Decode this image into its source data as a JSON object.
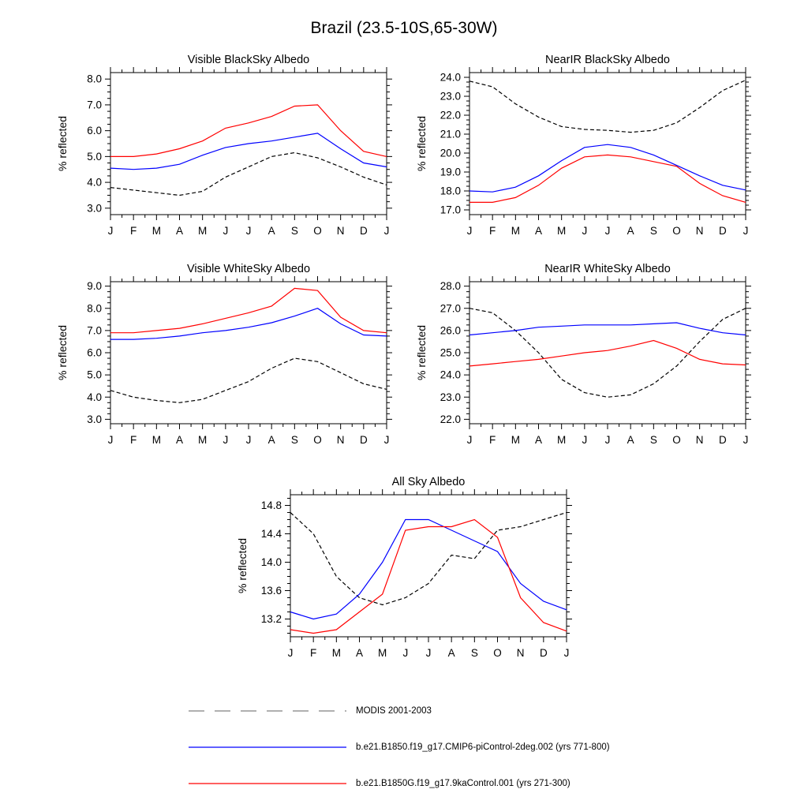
{
  "figure": {
    "title": "Brazil (23.5-10S,65-30W)"
  },
  "chart_data": [
    {
      "type": "line",
      "title": "Visible BlackSky Albedo",
      "ylabel": "% reflected",
      "categories": [
        "J",
        "F",
        "M",
        "A",
        "M",
        "J",
        "J",
        "A",
        "S",
        "O",
        "N",
        "D",
        "J"
      ],
      "ylim": [
        2.75,
        8.25
      ],
      "yticks": [
        3.0,
        4.0,
        5.0,
        6.0,
        7.0,
        8.0
      ],
      "series": [
        {
          "name": "MODIS 2001-2003",
          "color": "#000000",
          "dashed": true,
          "values": [
            3.8,
            3.7,
            3.6,
            3.5,
            3.65,
            4.2,
            4.6,
            5.0,
            5.15,
            4.95,
            4.6,
            4.2,
            3.9
          ]
        },
        {
          "name": "b.e21.B1850.f19_g17.CMIP6-piControl-2deg.002 (yrs 771-800)",
          "color": "#0000ff",
          "dashed": false,
          "values": [
            4.55,
            4.5,
            4.55,
            4.7,
            5.05,
            5.35,
            5.5,
            5.6,
            5.75,
            5.9,
            5.3,
            4.75,
            4.6
          ]
        },
        {
          "name": "b.e21.B1850G.f19_g17.9kaControl.001 (yrs 271-300)",
          "color": "#ff0000",
          "dashed": false,
          "values": [
            5.0,
            5.0,
            5.1,
            5.3,
            5.6,
            6.1,
            6.3,
            6.55,
            6.95,
            7.0,
            6.0,
            5.2,
            5.0
          ]
        }
      ]
    },
    {
      "type": "line",
      "title": "NearIR BlackSky Albedo",
      "ylabel": "% reflected",
      "categories": [
        "J",
        "F",
        "M",
        "A",
        "M",
        "J",
        "J",
        "A",
        "S",
        "O",
        "N",
        "D",
        "J"
      ],
      "ylim": [
        16.75,
        24.25
      ],
      "yticks": [
        17.0,
        18.0,
        19.0,
        20.0,
        21.0,
        22.0,
        23.0,
        24.0
      ],
      "series": [
        {
          "name": "MODIS 2001-2003",
          "color": "#000000",
          "dashed": true,
          "values": [
            23.8,
            23.5,
            22.6,
            21.9,
            21.4,
            21.25,
            21.2,
            21.1,
            21.2,
            21.6,
            22.4,
            23.3,
            23.85
          ]
        },
        {
          "name": "b.e21.B1850.f19_g17.CMIP6-piControl-2deg.002 (yrs 771-800)",
          "color": "#0000ff",
          "dashed": false,
          "values": [
            18.0,
            17.95,
            18.2,
            18.8,
            19.6,
            20.3,
            20.45,
            20.3,
            19.9,
            19.35,
            18.8,
            18.3,
            18.05
          ]
        },
        {
          "name": "b.e21.B1850G.f19_g17.9kaControl.001 (yrs 271-300)",
          "color": "#ff0000",
          "dashed": false,
          "values": [
            17.4,
            17.4,
            17.65,
            18.3,
            19.2,
            19.8,
            19.9,
            19.8,
            19.55,
            19.3,
            18.4,
            17.75,
            17.4
          ]
        }
      ]
    },
    {
      "type": "line",
      "title": "Visible WhiteSky Albedo",
      "ylabel": "% reflected",
      "categories": [
        "J",
        "F",
        "M",
        "A",
        "M",
        "J",
        "J",
        "A",
        "S",
        "O",
        "N",
        "D",
        "J"
      ],
      "ylim": [
        2.8,
        9.2
      ],
      "yticks": [
        3.0,
        4.0,
        5.0,
        6.0,
        7.0,
        8.0,
        9.0
      ],
      "series": [
        {
          "name": "MODIS 2001-2003",
          "color": "#000000",
          "dashed": true,
          "values": [
            4.3,
            4.0,
            3.85,
            3.75,
            3.9,
            4.3,
            4.7,
            5.3,
            5.75,
            5.6,
            5.1,
            4.6,
            4.35
          ]
        },
        {
          "name": "b.e21.B1850.f19_g17.CMIP6-piControl-2deg.002 (yrs 771-800)",
          "color": "#0000ff",
          "dashed": false,
          "values": [
            6.6,
            6.6,
            6.65,
            6.75,
            6.9,
            7.0,
            7.15,
            7.35,
            7.65,
            8.0,
            7.3,
            6.8,
            6.75
          ]
        },
        {
          "name": "b.e21.B1850G.f19_g17.9kaControl.001 (yrs 271-300)",
          "color": "#ff0000",
          "dashed": false,
          "values": [
            6.9,
            6.9,
            7.0,
            7.1,
            7.3,
            7.55,
            7.8,
            8.1,
            8.9,
            8.8,
            7.6,
            7.0,
            6.9
          ]
        }
      ]
    },
    {
      "type": "line",
      "title": "NearIR WhiteSky Albedo",
      "ylabel": "% reflected",
      "categories": [
        "J",
        "F",
        "M",
        "A",
        "M",
        "J",
        "J",
        "A",
        "S",
        "O",
        "N",
        "D",
        "J"
      ],
      "ylim": [
        21.8,
        28.2
      ],
      "yticks": [
        22.0,
        23.0,
        24.0,
        25.0,
        26.0,
        27.0,
        28.0
      ],
      "series": [
        {
          "name": "MODIS 2001-2003",
          "color": "#000000",
          "dashed": true,
          "values": [
            27.0,
            26.8,
            26.0,
            25.0,
            23.8,
            23.2,
            23.0,
            23.1,
            23.6,
            24.4,
            25.5,
            26.5,
            27.0
          ]
        },
        {
          "name": "b.e21.B1850.f19_g17.CMIP6-piControl-2deg.002 (yrs 771-800)",
          "color": "#0000ff",
          "dashed": false,
          "values": [
            25.8,
            25.9,
            26.0,
            26.15,
            26.2,
            26.25,
            26.25,
            26.25,
            26.3,
            26.35,
            26.1,
            25.9,
            25.8
          ]
        },
        {
          "name": "b.e21.B1850G.f19_g17.9kaControl.001 (yrs 271-300)",
          "color": "#ff0000",
          "dashed": false,
          "values": [
            24.4,
            24.5,
            24.6,
            24.7,
            24.85,
            25.0,
            25.1,
            25.3,
            25.55,
            25.2,
            24.7,
            24.5,
            24.45
          ]
        }
      ]
    },
    {
      "type": "line",
      "title": "All Sky Albedo",
      "ylabel": "% reflected",
      "categories": [
        "J",
        "F",
        "M",
        "A",
        "M",
        "J",
        "J",
        "A",
        "S",
        "O",
        "N",
        "D",
        "J"
      ],
      "ylim": [
        12.95,
        14.95
      ],
      "yticks": [
        13.2,
        13.6,
        14.0,
        14.4,
        14.8
      ],
      "series": [
        {
          "name": "MODIS 2001-2003",
          "color": "#000000",
          "dashed": true,
          "values": [
            14.7,
            14.4,
            13.8,
            13.5,
            13.4,
            13.5,
            13.7,
            14.1,
            14.05,
            14.45,
            14.5,
            14.6,
            14.7
          ]
        },
        {
          "name": "b.e21.B1850.f19_g17.CMIP6-piControl-2deg.002 (yrs 771-800)",
          "color": "#0000ff",
          "dashed": false,
          "values": [
            13.3,
            13.2,
            13.27,
            13.55,
            14.0,
            14.6,
            14.6,
            14.45,
            14.3,
            14.15,
            13.7,
            13.45,
            13.33
          ]
        },
        {
          "name": "b.e21.B1850G.f19_g17.9kaControl.001 (yrs 271-300)",
          "color": "#ff0000",
          "dashed": false,
          "values": [
            13.05,
            13.0,
            13.05,
            13.3,
            13.55,
            14.45,
            14.5,
            14.5,
            14.6,
            14.35,
            13.5,
            13.15,
            13.03
          ]
        }
      ]
    }
  ],
  "legend": {
    "entries": [
      {
        "label": "MODIS 2001-2003",
        "color": "#808080",
        "dashed": true
      },
      {
        "label": "b.e21.B1850.f19_g17.CMIP6-piControl-2deg.002 (yrs 771-800)",
        "color": "#0000ff",
        "dashed": false
      },
      {
        "label": "b.e21.B1850G.f19_g17.9kaControl.001 (yrs 271-300)",
        "color": "#ff0000",
        "dashed": false
      }
    ]
  }
}
